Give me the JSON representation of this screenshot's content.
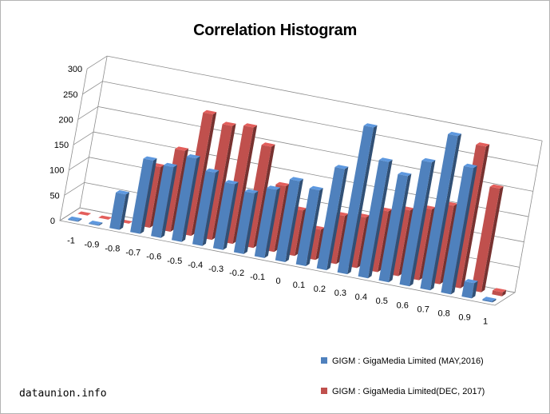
{
  "chart_data": {
    "type": "bar",
    "title": "Correlation Histogram",
    "categories": [
      "-1",
      "-0.9",
      "-0.8",
      "-0.7",
      "-0.6",
      "-0.5",
      "-0.4",
      "-0.3",
      "-0.2",
      "-0.1",
      "0",
      "0.1",
      "0.2",
      "0.3",
      "0.4",
      "0.5",
      "0.6",
      "0.7",
      "0.8",
      "0.9",
      "1"
    ],
    "y_ticks": [
      "0",
      "50",
      "100",
      "150",
      "200",
      "250",
      "300"
    ],
    "ylim": [
      0,
      300
    ],
    "grid": true,
    "legend_position": "bottom-right",
    "series": [
      {
        "name": "GIGM : GigaMedia Limited (MAY,2016)",
        "color": "#4f81bd",
        "values": [
          2,
          2,
          70,
          145,
          140,
          165,
          145,
          130,
          120,
          135,
          160,
          150,
          200,
          290,
          230,
          210,
          245,
          305,
          250,
          30,
          3
        ]
      },
      {
        "name": "GIGM : GigaMedia Limited(DEC, 2017)",
        "color": "#c0504d",
        "values": [
          0,
          0,
          0,
          120,
          160,
          240,
          225,
          230,
          200,
          130,
          90,
          60,
          95,
          100,
          120,
          130,
          140,
          155,
          280,
          205,
          8
        ]
      }
    ]
  },
  "watermark": "dataunion.info"
}
